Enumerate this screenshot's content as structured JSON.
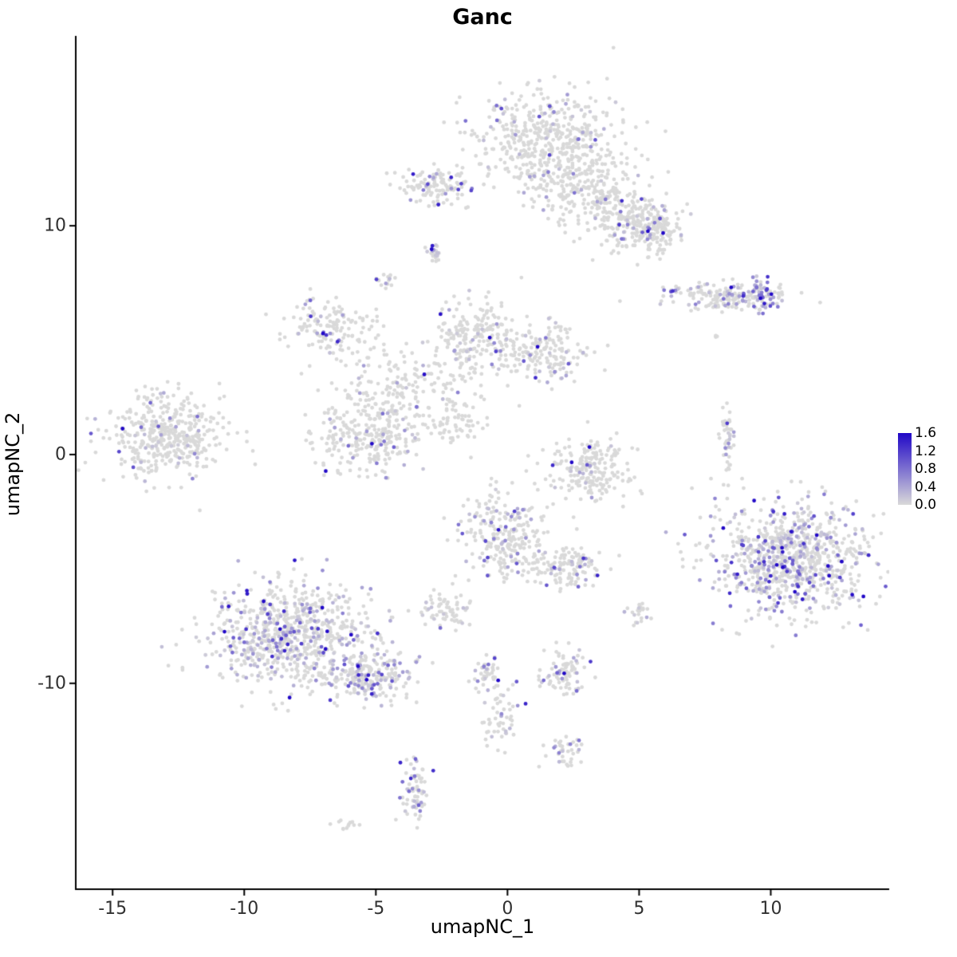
{
  "title": "Ganc",
  "chart_data": {
    "type": "scatter",
    "title": "Ganc",
    "xlabel": "umapNC_1",
    "ylabel": "umapNC_2",
    "xlim": [
      -16.4,
      14.5
    ],
    "ylim": [
      -19.0,
      18.3
    ],
    "x_ticks": [
      {
        "label": "-15",
        "value": -15
      },
      {
        "label": "-10",
        "value": -10
      },
      {
        "label": "-5",
        "value": -5
      },
      {
        "label": "0",
        "value": 0
      },
      {
        "label": "5",
        "value": 5
      },
      {
        "label": "10",
        "value": 10
      }
    ],
    "y_ticks": [
      {
        "label": "10",
        "value": 10
      },
      {
        "label": "0",
        "value": 0
      },
      {
        "label": "-10",
        "value": -10
      }
    ],
    "grid": false,
    "legend_position": "right",
    "colors": {
      "low": "#d9d9d9",
      "high": "#2108c7",
      "axis": "#000000"
    },
    "color_scale": {
      "min": 0.0,
      "max": 1.6,
      "ticks": [
        {
          "label": "1.6",
          "value": 1.6
        },
        {
          "label": "1.2",
          "value": 1.2
        },
        {
          "label": "0.8",
          "value": 0.8
        },
        {
          "label": "0.4",
          "value": 0.4
        },
        {
          "label": "0.0",
          "value": 0.0
        }
      ]
    },
    "point_radius": 2.4,
    "clusters": [
      {
        "x": 1.6,
        "y": 13.8,
        "sx": 1.4,
        "sy": 1.1,
        "n": 480,
        "f": 0.1
      },
      {
        "x": 3.2,
        "y": 11.6,
        "sx": 1.0,
        "sy": 0.9,
        "n": 240,
        "f": 0.08
      },
      {
        "x": 4.7,
        "y": 10.2,
        "sx": 0.8,
        "sy": 0.7,
        "n": 170,
        "f": 0.08
      },
      {
        "x": 5.6,
        "y": 9.8,
        "sx": 0.5,
        "sy": 0.5,
        "n": 110,
        "f": 0.1
      },
      {
        "x": -2.7,
        "y": 11.8,
        "sx": 0.8,
        "sy": 0.45,
        "n": 120,
        "f": 0.12
      },
      {
        "x": -2.8,
        "y": 8.9,
        "sx": 0.15,
        "sy": 0.2,
        "n": 22,
        "f": 0.35
      },
      {
        "x": -4.6,
        "y": 7.7,
        "sx": 0.2,
        "sy": 0.2,
        "n": 18,
        "f": 0.25
      },
      {
        "x": 8.2,
        "y": 6.9,
        "sx": 1.1,
        "sy": 0.3,
        "n": 170,
        "f": 0.2
      },
      {
        "x": 9.8,
        "y": 7.0,
        "sx": 0.45,
        "sy": 0.3,
        "n": 60,
        "f": 0.65
      },
      {
        "x": -6.6,
        "y": 5.5,
        "sx": 0.9,
        "sy": 0.65,
        "n": 150,
        "f": 0.1
      },
      {
        "x": -1.3,
        "y": 5.1,
        "sx": 0.85,
        "sy": 0.85,
        "n": 210,
        "f": 0.1
      },
      {
        "x": 1.5,
        "y": 4.4,
        "sx": 0.9,
        "sy": 0.6,
        "n": 170,
        "f": 0.12
      },
      {
        "x": -3.6,
        "y": 3.1,
        "sx": 1.2,
        "sy": 0.8,
        "n": 140,
        "f": 0.05
      },
      {
        "x": -13.0,
        "y": 0.9,
        "sx": 1.15,
        "sy": 0.85,
        "n": 420,
        "f": 0.08
      },
      {
        "x": -5.2,
        "y": 0.9,
        "sx": 1.0,
        "sy": 0.9,
        "n": 300,
        "f": 0.1
      },
      {
        "x": -1.9,
        "y": 1.4,
        "sx": 0.45,
        "sy": 0.55,
        "n": 55,
        "f": 0.05
      },
      {
        "x": 3.1,
        "y": -0.6,
        "sx": 0.85,
        "sy": 0.7,
        "n": 210,
        "f": 0.06
      },
      {
        "x": 8.35,
        "y": 0.5,
        "sx": 0.12,
        "sy": 0.75,
        "n": 48,
        "f": 0.3
      },
      {
        "x": 10.7,
        "y": -4.6,
        "sx": 1.55,
        "sy": 1.25,
        "n": 850,
        "f": 0.3
      },
      {
        "x": -0.2,
        "y": -3.4,
        "sx": 0.8,
        "sy": 1.0,
        "n": 250,
        "f": 0.18
      },
      {
        "x": 2.2,
        "y": -4.9,
        "sx": 0.75,
        "sy": 0.5,
        "n": 130,
        "f": 0.12
      },
      {
        "x": -2.4,
        "y": -6.9,
        "sx": 0.5,
        "sy": 0.4,
        "n": 65,
        "f": 0.15
      },
      {
        "x": 5.0,
        "y": -7.0,
        "sx": 0.25,
        "sy": 0.25,
        "n": 22,
        "f": 0.15
      },
      {
        "x": -8.2,
        "y": -7.8,
        "sx": 1.5,
        "sy": 1.1,
        "n": 780,
        "f": 0.28
      },
      {
        "x": -5.3,
        "y": -9.7,
        "sx": 0.85,
        "sy": 0.55,
        "n": 220,
        "f": 0.3
      },
      {
        "x": -0.8,
        "y": -9.6,
        "sx": 0.3,
        "sy": 0.4,
        "n": 42,
        "f": 0.2
      },
      {
        "x": 2.2,
        "y": -9.6,
        "sx": 0.5,
        "sy": 0.5,
        "n": 85,
        "f": 0.25
      },
      {
        "x": -0.2,
        "y": -11.6,
        "sx": 0.4,
        "sy": 0.7,
        "n": 55,
        "f": 0.18
      },
      {
        "x": 2.2,
        "y": -12.9,
        "sx": 0.35,
        "sy": 0.3,
        "n": 38,
        "f": 0.15
      },
      {
        "x": -3.5,
        "y": -14.6,
        "sx": 0.25,
        "sy": 0.8,
        "n": 68,
        "f": 0.45
      },
      {
        "x": -6.1,
        "y": -16.3,
        "sx": 0.28,
        "sy": 0.12,
        "n": 12,
        "f": 0.0
      },
      {
        "x": 8.1,
        "y": 5.2,
        "sx": 0.15,
        "sy": 0.15,
        "n": 3,
        "f": 0.0
      }
    ]
  }
}
